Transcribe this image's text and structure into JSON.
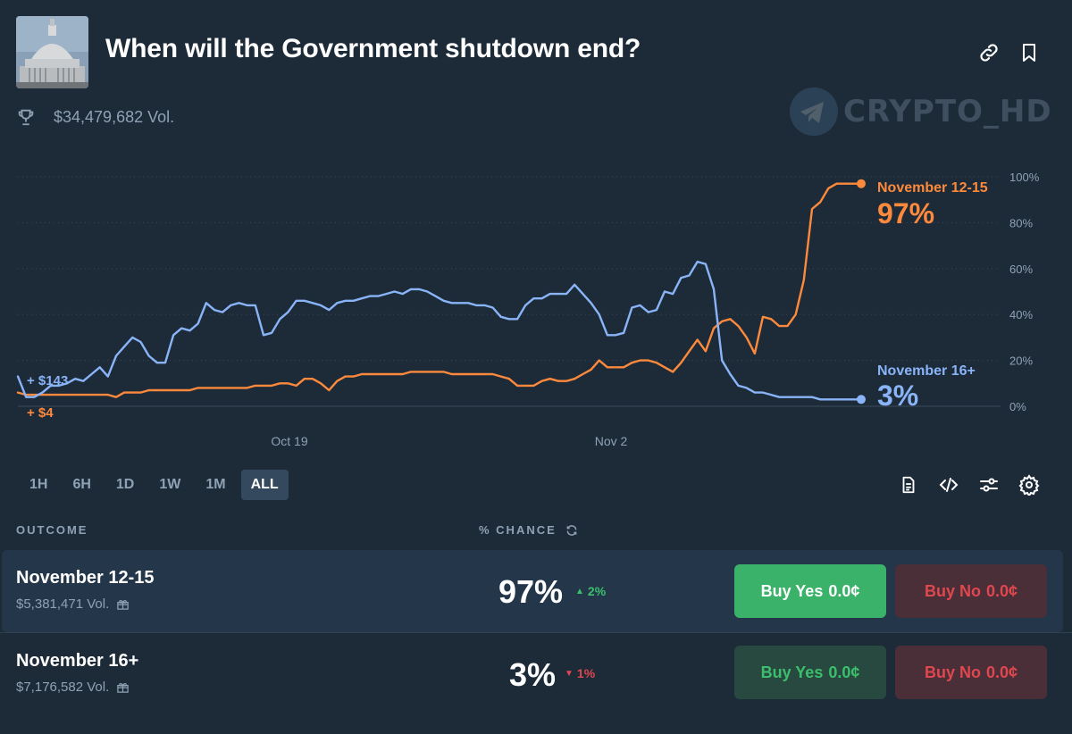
{
  "header": {
    "title": "When will the Government shutdown end?",
    "volume": "$34,479,682 Vol."
  },
  "watermark": {
    "text": "CRYPTO_HD"
  },
  "icons": {
    "thumbnail": "capitol-building-image",
    "link": "link-icon",
    "bookmark": "bookmark-icon",
    "trophy": "trophy-icon",
    "document": "document-icon",
    "embed": "code-icon",
    "filters": "sliders-icon",
    "settings": "gear-icon",
    "refresh": "refresh-icon",
    "gift": "gift-icon",
    "telegram": "telegram-icon"
  },
  "chart_data": {
    "type": "line",
    "x_ticks": [
      "Oct 19",
      "Nov 2"
    ],
    "y_ticks": [
      "100%",
      "80%",
      "60%",
      "40%",
      "20%",
      "0%"
    ],
    "ylim": [
      0,
      100
    ],
    "series": [
      {
        "name": "November 12-15",
        "color": "#fd8a3c",
        "end_label": "97%",
        "start_label": "+ $4",
        "values": [
          6,
          5,
          5,
          5,
          5,
          5,
          5,
          5,
          5,
          5,
          5,
          5,
          4,
          6,
          6,
          6,
          7,
          7,
          7,
          7,
          7,
          7,
          8,
          8,
          8,
          8,
          8,
          8,
          8,
          9,
          9,
          9,
          10,
          10,
          9,
          12,
          12,
          10,
          7,
          11,
          13,
          13,
          14,
          14,
          14,
          14,
          14,
          14,
          15,
          15,
          15,
          15,
          15,
          14,
          14,
          14,
          14,
          14,
          14,
          13,
          12,
          9,
          9,
          9,
          11,
          12,
          11,
          11,
          12,
          14,
          16,
          20,
          17,
          17,
          17,
          19,
          20,
          20,
          19,
          17,
          15,
          19,
          24,
          29,
          24,
          34,
          37,
          38,
          35,
          30,
          23,
          39,
          38,
          35,
          35,
          40,
          55,
          86,
          89,
          95,
          97,
          97,
          97,
          97
        ]
      },
      {
        "name": "November 16+",
        "color": "#8ab4f8",
        "end_label": "3%",
        "start_label": "+ $143",
        "values": [
          13,
          4,
          4,
          6,
          9,
          9,
          10,
          12,
          11,
          14,
          17,
          13,
          22,
          26,
          30,
          28,
          22,
          19,
          19,
          31,
          34,
          33,
          36,
          45,
          42,
          41,
          44,
          45,
          44,
          44,
          31,
          32,
          38,
          41,
          46,
          46,
          45,
          44,
          42,
          45,
          46,
          46,
          47,
          48,
          48,
          49,
          50,
          49,
          51,
          51,
          50,
          48,
          46,
          45,
          45,
          45,
          44,
          44,
          43,
          39,
          38,
          38,
          44,
          47,
          47,
          49,
          49,
          49,
          53,
          49,
          45,
          40,
          31,
          31,
          32,
          43,
          44,
          41,
          42,
          50,
          49,
          56,
          57,
          63,
          62,
          51,
          20,
          14,
          9,
          8,
          6,
          6,
          5,
          4,
          4,
          4,
          4,
          4,
          3,
          3,
          3,
          3,
          3,
          3
        ]
      }
    ]
  },
  "ranges": {
    "items": [
      "1H",
      "6H",
      "1D",
      "1W",
      "1M",
      "ALL"
    ],
    "active": "ALL"
  },
  "table": {
    "col_outcome": "OUTCOME",
    "col_chance": "% CHANCE",
    "rows": [
      {
        "name": "November 12-15",
        "volume": "$5,381,471 Vol.",
        "chance": "97%",
        "change": "2%",
        "change_dir": "up",
        "yes_label": "Buy Yes",
        "yes_price": "0.0¢",
        "no_label": "Buy No",
        "no_price": "0.0¢"
      },
      {
        "name": "November 16+",
        "volume": "$7,176,582 Vol.",
        "chance": "3%",
        "change": "1%",
        "change_dir": "down",
        "yes_label": "Buy Yes",
        "yes_price": "0.0¢",
        "no_label": "Buy No",
        "no_price": "0.0¢"
      }
    ]
  }
}
